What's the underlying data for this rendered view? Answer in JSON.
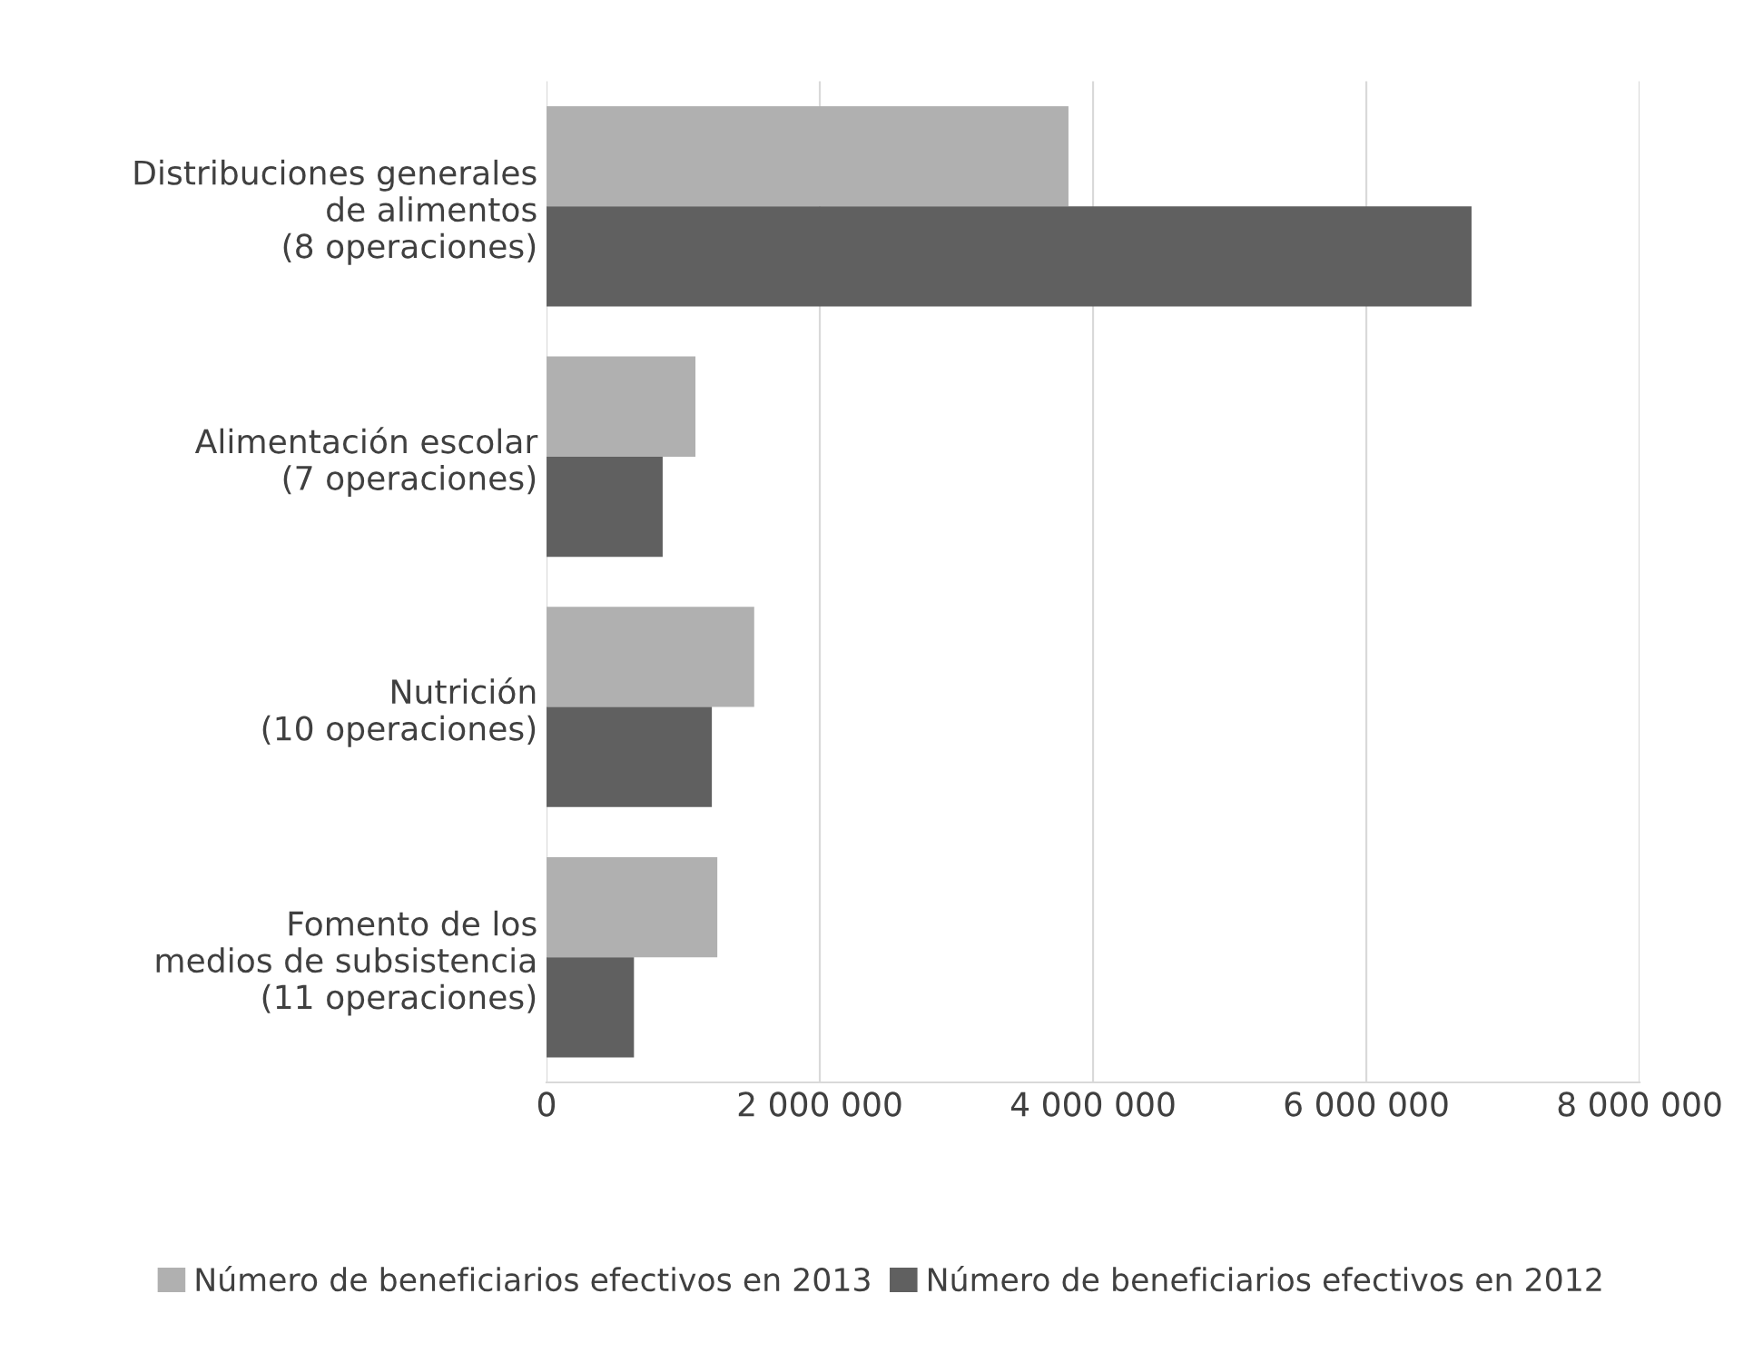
{
  "chart_data": {
    "type": "bar",
    "orientation": "horizontal",
    "categories": [
      "Distribuciones generales\nde alimentos\n(8 operaciones)",
      "Alimentación escolar\n(7 operaciones)",
      "Nutrición\n(10 operaciones)",
      "Fomento de los\nmedios de subsistencia\n(11 operaciones)"
    ],
    "series": [
      {
        "name": "Número de beneficiarios efectivos en 2013",
        "color": "#b0b0b0",
        "values": [
          3820000,
          1090000,
          1520000,
          1250000
        ]
      },
      {
        "name": "Número de beneficiarios efectivos en 2012",
        "color": "#606060",
        "values": [
          6770000,
          850000,
          1210000,
          640000
        ]
      }
    ],
    "xlim": [
      0,
      8000000
    ],
    "xticks": [
      {
        "value": 0,
        "label": "0"
      },
      {
        "value": 2000000,
        "label": "2 000 000"
      },
      {
        "value": 4000000,
        "label": "4 000 000"
      },
      {
        "value": 6000000,
        "label": "6 000 000"
      },
      {
        "value": 8000000,
        "label": "8 000 000"
      }
    ],
    "grid": "x",
    "legend": "bottom"
  }
}
